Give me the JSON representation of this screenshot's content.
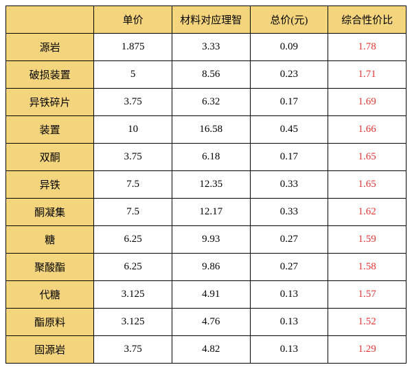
{
  "header": {
    "blank": "",
    "price": "单价",
    "material": "材料对应理智",
    "total": "总价(元)",
    "ratio": "综合性价比"
  },
  "rows": [
    {
      "label": "源岩",
      "price": "1.875",
      "material": "3.33",
      "total": "0.09",
      "ratio": "1.78"
    },
    {
      "label": "破损装置",
      "price": "5",
      "material": "8.56",
      "total": "0.23",
      "ratio": "1.71"
    },
    {
      "label": "异铁碎片",
      "price": "3.75",
      "material": "6.32",
      "total": "0.17",
      "ratio": "1.69"
    },
    {
      "label": "装置",
      "price": "10",
      "material": "16.58",
      "total": "0.45",
      "ratio": "1.66"
    },
    {
      "label": "双酮",
      "price": "3.75",
      "material": "6.18",
      "total": "0.17",
      "ratio": "1.65"
    },
    {
      "label": "异铁",
      "price": "7.5",
      "material": "12.35",
      "total": "0.33",
      "ratio": "1.65"
    },
    {
      "label": "酮凝集",
      "price": "7.5",
      "material": "12.17",
      "total": "0.33",
      "ratio": "1.62"
    },
    {
      "label": "糖",
      "price": "6.25",
      "material": "9.93",
      "total": "0.27",
      "ratio": "1.59"
    },
    {
      "label": "聚酸酯",
      "price": "6.25",
      "material": "9.86",
      "total": "0.27",
      "ratio": "1.58"
    },
    {
      "label": "代糖",
      "price": "3.125",
      "material": "4.91",
      "total": "0.13",
      "ratio": "1.57"
    },
    {
      "label": "酯原料",
      "price": "3.125",
      "material": "4.76",
      "total": "0.13",
      "ratio": "1.52"
    },
    {
      "label": "固源岩",
      "price": "3.75",
      "material": "4.82",
      "total": "0.13",
      "ratio": "1.29"
    }
  ],
  "colors": {
    "header_bg": "#f4d47c",
    "border": "#000000",
    "ratio_text": "#e53333",
    "body_bg": "#ffffff"
  },
  "font_size": 15
}
